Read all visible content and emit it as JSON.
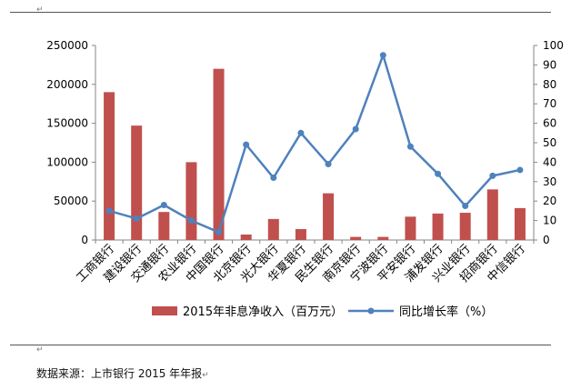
{
  "top_return_mark": "↵",
  "bottom_return_mark": "↵",
  "source_note": "数据来源：上市银行 2015 年年报",
  "source_return_mark": "↵",
  "colors": {
    "bar": "#c0504d",
    "line": "#4f81bd",
    "axis": "#868686",
    "text": "#000000"
  },
  "chart_data": {
    "type": "bar+line",
    "categories": [
      "工商银行",
      "建设银行",
      "交通银行",
      "农业银行",
      "中国银行",
      "北京银行",
      "光大银行",
      "华夏银行",
      "民生银行",
      "南京银行",
      "宁波银行",
      "平安银行",
      "浦发银行",
      "兴业银行",
      "招商银行",
      "中信银行"
    ],
    "series": [
      {
        "name": "2015年非息净收入（百万元）",
        "type": "bar",
        "axis": "left",
        "values": [
          190000,
          147000,
          36000,
          100000,
          220000,
          7000,
          27000,
          14000,
          60000,
          4000,
          4000,
          30000,
          34000,
          35000,
          65000,
          41000
        ]
      },
      {
        "name": "同比增长率（%）",
        "type": "line",
        "axis": "right",
        "values": [
          15,
          11,
          18,
          10,
          4,
          49,
          32,
          55,
          39,
          57,
          95,
          48,
          34,
          17.5,
          33,
          36
        ]
      }
    ],
    "left_axis": {
      "min": 0,
      "max": 250000,
      "step": 50000,
      "ticks": [
        "0",
        "50000",
        "100000",
        "150000",
        "200000",
        "250000"
      ]
    },
    "right_axis": {
      "min": 0,
      "max": 100,
      "step": 10,
      "ticks": [
        "0",
        "10",
        "20",
        "30",
        "40",
        "50",
        "60",
        "70",
        "80",
        "90",
        "100"
      ]
    },
    "legend_position": "bottom",
    "grid": false
  }
}
